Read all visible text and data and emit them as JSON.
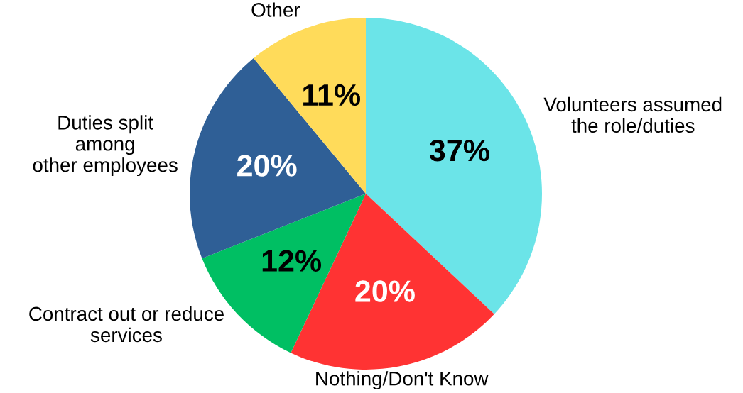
{
  "chart_data": {
    "type": "pie",
    "categories": [
      "Volunteers assumed\nthe role/duties",
      "Nothing/Don't Know",
      "Contract out or reduce\nservices",
      "Duties split\namong\nother employees",
      "Other"
    ],
    "values": [
      37,
      20,
      12,
      20,
      11
    ],
    "colors": [
      "#6be4e8",
      "#ff3333",
      "#00bf63",
      "#2f5f96",
      "#ffdb5a"
    ],
    "value_labels": [
      "37%",
      "20%",
      "12%",
      "20%",
      "11%"
    ],
    "legend": false
  }
}
